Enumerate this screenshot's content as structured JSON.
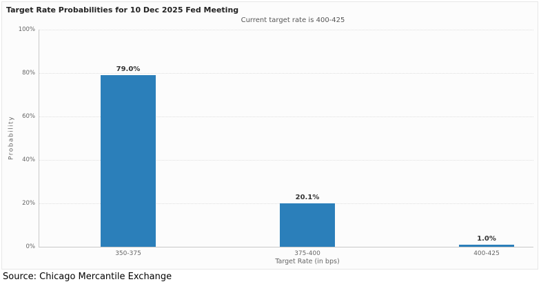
{
  "chart_data": {
    "type": "bar",
    "title": "Target Rate Probabilities for 10 Dec 2025 Fed Meeting",
    "subtitle": "Current target rate is 400-425",
    "categories": [
      "350-375",
      "375-400",
      "400-425"
    ],
    "values": [
      79.0,
      20.1,
      1.0
    ],
    "value_labels": [
      "79.0%",
      "20.1%",
      "1.0%"
    ],
    "xlabel": "Target Rate (in bps)",
    "ylabel": "Probability",
    "ylim": [
      0,
      100
    ],
    "yticks": [
      0,
      20,
      40,
      60,
      80,
      100
    ],
    "ytick_labels": [
      "0%",
      "20%",
      "40%",
      "60%",
      "80%",
      "100%"
    ],
    "grid": "horizontal-dotted",
    "legend": "none",
    "bar_color": "#2b7fba"
  },
  "source": {
    "text": "Source: Chicago Mercantile Exchange"
  }
}
